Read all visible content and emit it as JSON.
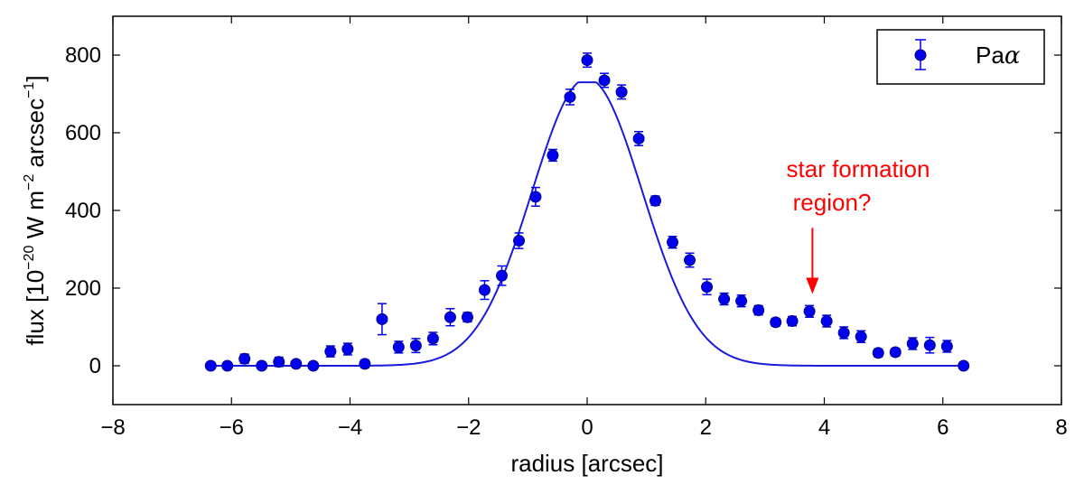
{
  "chart_data": {
    "type": "scatter",
    "xlabel": "radius [arcsec]",
    "ylabel": {
      "prefix": "flux [10",
      "exp1": "−20",
      "mid": " W m",
      "exp2": "−2",
      "mid2": " arcsec",
      "exp3": "−1",
      "suffix": "]"
    },
    "xlim": [
      -8,
      8
    ],
    "ylim": [
      -100,
      900
    ],
    "x_ticks": [
      -8,
      -6,
      -4,
      -2,
      0,
      2,
      4,
      6,
      8
    ],
    "x_tick_labels": [
      "−8",
      "−6",
      "−4",
      "−2",
      "0",
      "2",
      "4",
      "6",
      "8"
    ],
    "y_ticks": [
      0,
      200,
      400,
      600,
      800
    ],
    "y_tick_labels": [
      "0",
      "200",
      "400",
      "600",
      "800"
    ],
    "grid": false,
    "legend": {
      "placement": "top-right",
      "name_base": "Pa",
      "name_greek": "α"
    },
    "colors": {
      "marker": "#0000ee",
      "line": "#1a1adb",
      "annotation": "#ff0000"
    },
    "series": [
      {
        "kind": "points_with_errorbars",
        "x": [
          -6.35,
          -6.07,
          -5.78,
          -5.49,
          -5.2,
          -4.91,
          -4.62,
          -4.33,
          -4.04,
          -3.75,
          -3.46,
          -3.18,
          -2.89,
          -2.6,
          -2.31,
          -2.02,
          -1.73,
          -1.44,
          -1.15,
          -0.87,
          -0.58,
          -0.29,
          0.0,
          0.29,
          0.58,
          0.87,
          1.15,
          1.44,
          1.73,
          2.02,
          2.31,
          2.6,
          2.89,
          3.18,
          3.46,
          3.75,
          4.04,
          4.33,
          4.62,
          4.91,
          5.2,
          5.49,
          5.78,
          6.07,
          6.35
        ],
        "y": [
          0,
          0,
          18,
          0,
          10,
          5,
          0,
          37,
          43,
          5,
          120,
          48,
          52,
          70,
          125,
          125,
          195,
          232,
          322,
          435,
          542,
          692,
          787,
          735,
          705,
          585,
          425,
          318,
          272,
          203,
          172,
          167,
          143,
          112,
          115,
          140,
          115,
          85,
          75,
          33,
          35,
          57,
          53,
          50,
          0
        ],
        "yerr": [
          5,
          5,
          12,
          5,
          12,
          8,
          5,
          14,
          15,
          10,
          40,
          15,
          18,
          16,
          22,
          12,
          24,
          25,
          20,
          24,
          15,
          20,
          18,
          18,
          18,
          18,
          12,
          15,
          18,
          20,
          15,
          15,
          12,
          10,
          12,
          15,
          15,
          15,
          15,
          10,
          10,
          15,
          20,
          15,
          5
        ]
      },
      {
        "kind": "model_curve",
        "shape": "gaussian",
        "center": 0.0,
        "sigma": 0.93,
        "peak": 740,
        "flat_top": 730,
        "x_range": [
          -6.35,
          6.35
        ]
      }
    ],
    "annotation": {
      "text_line1": "star formation",
      "text_line2": "region?",
      "arrow_x": 3.8,
      "arrow_from_y": 355,
      "arrow_to_y": 185
    }
  }
}
